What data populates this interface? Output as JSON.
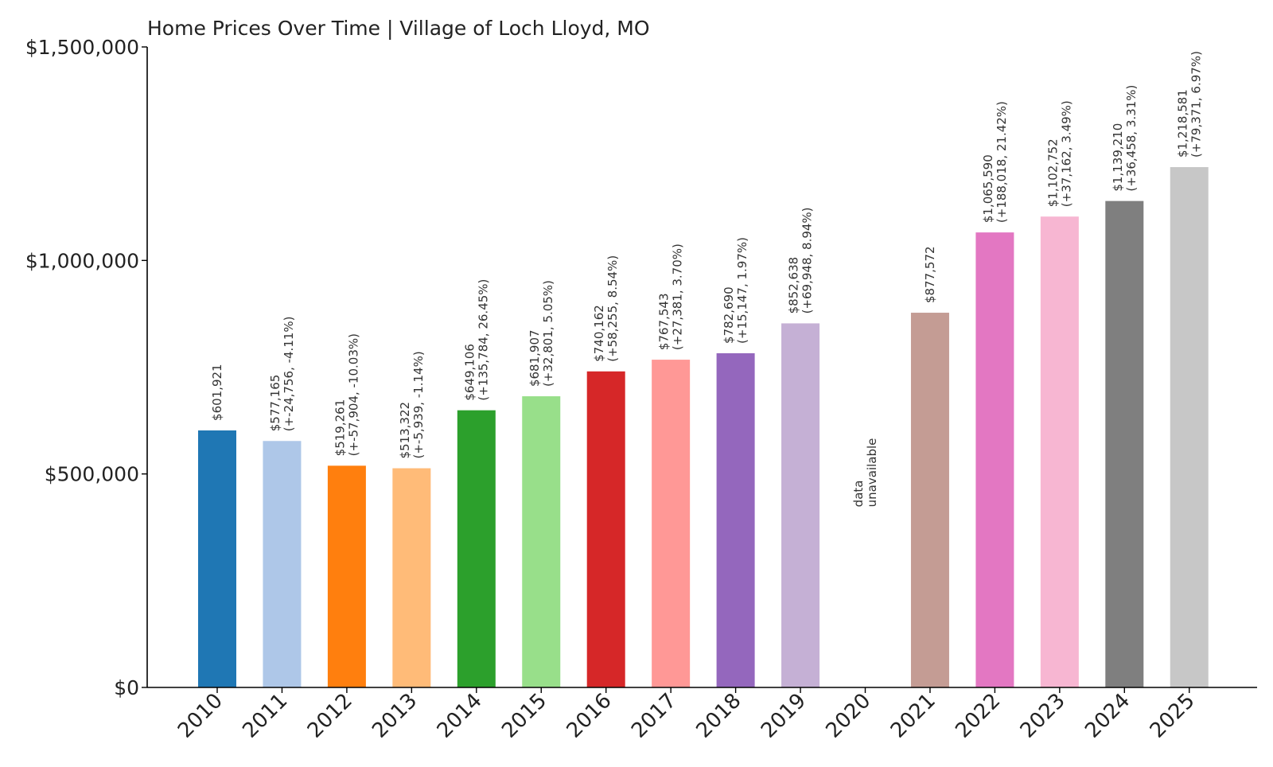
{
  "chart_data": {
    "type": "bar",
    "title": "Home Prices Over Time | Village of Loch Lloyd, MO",
    "xlabel": "",
    "ylabel": "",
    "ylim": [
      0,
      1500000
    ],
    "yticks": [
      {
        "value": 0,
        "label": "$0"
      },
      {
        "value": 500000,
        "label": "$500,000"
      },
      {
        "value": 1000000,
        "label": "$1,000,000"
      },
      {
        "value": 1500000,
        "label": "$1,500,000"
      }
    ],
    "categories": [
      "2010",
      "2011",
      "2012",
      "2013",
      "2014",
      "2015",
      "2016",
      "2017",
      "2018",
      "2019",
      "2020",
      "2021",
      "2022",
      "2023",
      "2024",
      "2025"
    ],
    "values": [
      601921,
      577165,
      519261,
      513322,
      649106,
      681907,
      740162,
      767543,
      782690,
      852638,
      null,
      877572,
      1065590,
      1102752,
      1139210,
      1218581
    ],
    "colors": [
      "#1f77b4",
      "#aec7e8",
      "#ff7f0e",
      "#ffbb78",
      "#2ca02c",
      "#98df8a",
      "#d62728",
      "#ff9896",
      "#9467bd",
      "#c5b0d5",
      "#8c564b",
      "#c49c94",
      "#e377c2",
      "#f7b6d2",
      "#7f7f7f",
      "#c7c7c7"
    ],
    "data_labels": [
      [
        "$601,921"
      ],
      [
        "$577,165",
        "(+-24,756, -4.11%)"
      ],
      [
        "$519,261",
        "(+-57,904, -10.03%)"
      ],
      [
        "$513,322",
        "(+-5,939, -1.14%)"
      ],
      [
        "$649,106",
        "(+135,784, 26.45%)"
      ],
      [
        "$681,907",
        "(+32,801, 5.05%)"
      ],
      [
        "$740,162",
        "(+58,255, 8.54%)"
      ],
      [
        "$767,543",
        "(+27,381, 3.70%)"
      ],
      [
        "$782,690",
        "(+15,147, 1.97%)"
      ],
      [
        "$852,638",
        "(+69,948, 8.94%)"
      ],
      [
        "data",
        "unavailable"
      ],
      [
        "$877,572"
      ],
      [
        "$1,065,590",
        "(+188,018, 21.42%)"
      ],
      [
        "$1,102,752",
        "(+37,162, 3.49%)"
      ],
      [
        "$1,139,210",
        "(+36,458, 3.31%)"
      ],
      [
        "$1,218,581",
        "(+79,371, 6.97%)"
      ]
    ],
    "missing_placeholder_value": 400000
  }
}
